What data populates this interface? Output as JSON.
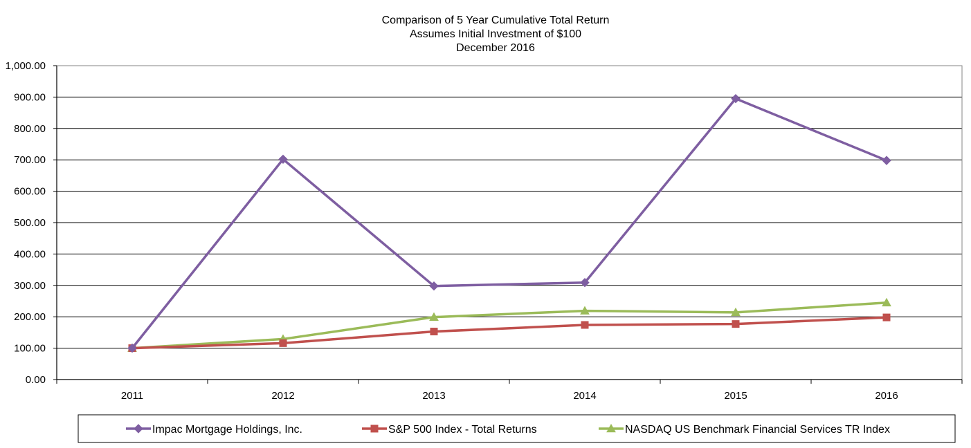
{
  "chart_data": {
    "type": "line",
    "title": [
      "Comparison of 5 Year Cumulative Total Return",
      "Assumes Initial Investment of $100",
      "December 2016"
    ],
    "categories": [
      "2011",
      "2012",
      "2013",
      "2014",
      "2015",
      "2016"
    ],
    "ylim": [
      0,
      1000
    ],
    "yticks": [
      "0.00",
      "100.00",
      "200.00",
      "300.00",
      "400.00",
      "500.00",
      "600.00",
      "700.00",
      "800.00",
      "900.00",
      "1,000.00"
    ],
    "grid": true,
    "legend_position": "bottom",
    "series": [
      {
        "name": "Impac Mortgage Holdings, Inc.",
        "color": "#7e5ea1",
        "marker": "diamond",
        "values": [
          100,
          702,
          298,
          309,
          895,
          698
        ]
      },
      {
        "name": "S&P 500 Index - Total Returns",
        "color": "#c0504d",
        "marker": "square",
        "values": [
          100,
          116,
          153,
          174,
          177,
          198
        ]
      },
      {
        "name": "NASDAQ US Benchmark Financial Services TR Index",
        "color": "#9bbb59",
        "marker": "triangle",
        "values": [
          100,
          129,
          199,
          219,
          214,
          245
        ]
      }
    ]
  }
}
